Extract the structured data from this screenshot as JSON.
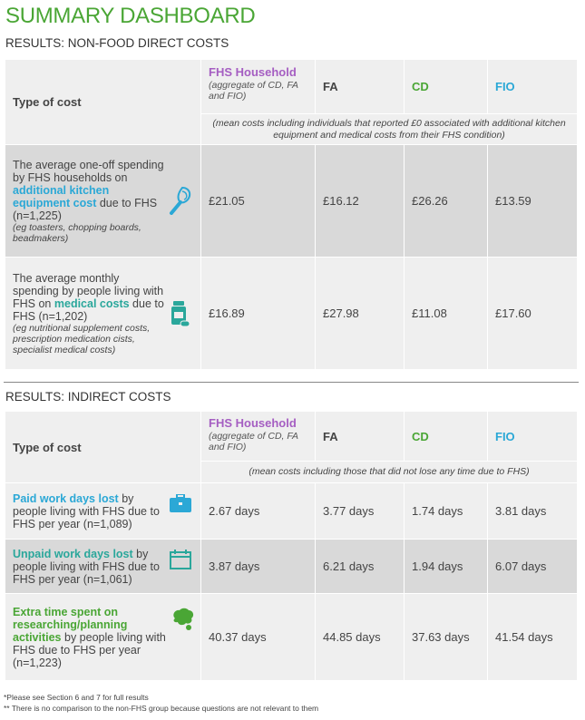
{
  "title": "SUMMARY DASHBOARD",
  "section1": {
    "heading": "RESULTS: NON-FOOD DIRECT COSTS",
    "type_label": "Type of cost",
    "columns": [
      {
        "label": "FHS Household",
        "sub": "(aggregate of CD, FA and FIO)"
      },
      {
        "label": "FA"
      },
      {
        "label": "CD"
      },
      {
        "label": "FIO"
      }
    ],
    "note": "(mean costs including individuals that reported £0 associated with additional kitchen equipment and medical costs from their FHS condition)",
    "rows": [
      {
        "pre": "The average one-off spending by FHS households on",
        "highlight": "additional kitchen equipment cost",
        "post": "due to FHS (n=1,225)",
        "eg": "(eg toasters, chopping boards, beadmakers)",
        "icon": "whisk-icon",
        "values": [
          "£21.05",
          "£16.12",
          "£26.26",
          "£13.59"
        ]
      },
      {
        "pre": "The average monthly spending by people living with FHS on",
        "highlight": "medical costs",
        "post": "due to FHS (n=1,202)",
        "eg": "(eg nutritional supplement costs, prescription medication cists, specialist medical costs)",
        "icon": "medicine-bottle-icon",
        "values": [
          "£16.89",
          "£27.98",
          "£11.08",
          "£17.60"
        ]
      }
    ]
  },
  "section2": {
    "heading": "RESULTS: INDIRECT COSTS",
    "type_label": "Type of cost",
    "columns": [
      {
        "label": "FHS Household",
        "sub": "(aggregate of CD, FA and FIO)"
      },
      {
        "label": "FA"
      },
      {
        "label": "CD"
      },
      {
        "label": "FIO"
      }
    ],
    "note": "(mean costs including those that did not lose any time due to FHS)",
    "rows": [
      {
        "highlight": "Paid work days lost",
        "post": "by people living with FHS due to FHS per year (n=1,089)",
        "icon": "briefcase-icon",
        "values": [
          "2.67 days",
          "3.77 days",
          "1.74 days",
          "3.81 days"
        ]
      },
      {
        "highlight": "Unpaid work days lost",
        "post": "by people living with FHS due to FHS per year (n=1,061)",
        "icon": "calendar-icon",
        "values": [
          "3.87 days",
          "6.21 days",
          "1.94 days",
          "6.07 days"
        ]
      },
      {
        "highlight": "Extra time spent on researching/planning activities",
        "post": "by people living with FHS due to FHS per year (n=1,223)",
        "icon": "brain-icon",
        "values": [
          "40.37 days",
          "44.85 days",
          "37.63 days",
          "41.54 days"
        ]
      }
    ]
  },
  "footnotes": [
    "*Please see Section 6 and 7 for full results",
    "** There is no comparison to the non-FHS group because questions are not relevant to them"
  ],
  "colors": {
    "green": "#4aa635",
    "purple": "#a55ec2",
    "blue": "#2ba8d6",
    "teal": "#2aa79b"
  }
}
